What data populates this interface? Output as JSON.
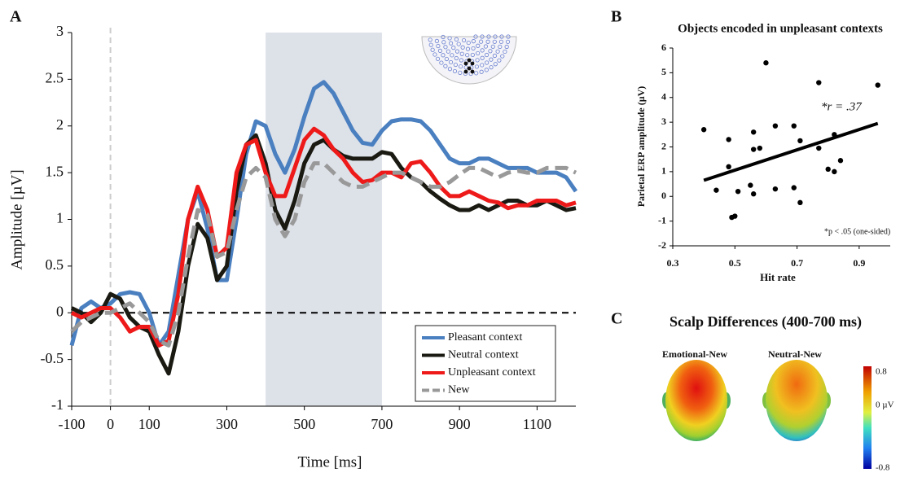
{
  "chart_data": [
    {
      "type": "line",
      "panel": "A",
      "xlabel": "Time [ms]",
      "ylabel": "Amplitude [µV]",
      "xlim": [
        -100,
        1200
      ],
      "ylim": [
        -1,
        3
      ],
      "xticks": [
        -100,
        0,
        100,
        300,
        500,
        700,
        900,
        1100
      ],
      "yticks": [
        -1,
        -0.5,
        0,
        0.5,
        1,
        1.5,
        2,
        2.5,
        3
      ],
      "shaded_region": [
        400,
        700
      ],
      "vline": 0,
      "hline": 0,
      "legend": "lower right",
      "x": [
        -100,
        -75,
        -50,
        -25,
        0,
        25,
        50,
        75,
        100,
        125,
        150,
        175,
        200,
        225,
        250,
        275,
        300,
        325,
        350,
        375,
        400,
        425,
        450,
        475,
        500,
        525,
        550,
        575,
        600,
        625,
        650,
        675,
        700,
        725,
        750,
        775,
        800,
        825,
        850,
        875,
        900,
        925,
        950,
        975,
        1000,
        1025,
        1050,
        1075,
        1100,
        1125,
        1150,
        1175,
        1200
      ],
      "series": [
        {
          "name": "Pleasant context",
          "color": "#4a7fc0",
          "dash": false,
          "values": [
            -0.35,
            0.05,
            0.12,
            0.05,
            0.1,
            0.2,
            0.22,
            0.2,
            0.0,
            -0.35,
            -0.2,
            0.4,
            1.0,
            1.3,
            0.9,
            0.35,
            0.35,
            1.0,
            1.7,
            2.05,
            2.0,
            1.7,
            1.5,
            1.75,
            2.1,
            2.4,
            2.47,
            2.35,
            2.15,
            1.95,
            1.82,
            1.8,
            1.95,
            2.05,
            2.07,
            2.07,
            2.05,
            1.95,
            1.8,
            1.65,
            1.6,
            1.6,
            1.65,
            1.65,
            1.6,
            1.55,
            1.55,
            1.55,
            1.5,
            1.5,
            1.5,
            1.45,
            1.3
          ]
        },
        {
          "name": "Neutral context",
          "color": "#1a1a12",
          "dash": false,
          "values": [
            0.05,
            0.0,
            -0.1,
            0.0,
            0.2,
            0.15,
            -0.05,
            -0.15,
            -0.2,
            -0.45,
            -0.65,
            -0.2,
            0.5,
            0.95,
            0.8,
            0.35,
            0.5,
            1.3,
            1.8,
            1.9,
            1.6,
            1.1,
            0.9,
            1.2,
            1.6,
            1.8,
            1.85,
            1.75,
            1.68,
            1.65,
            1.65,
            1.65,
            1.72,
            1.7,
            1.55,
            1.45,
            1.4,
            1.3,
            1.22,
            1.15,
            1.1,
            1.1,
            1.15,
            1.1,
            1.15,
            1.2,
            1.2,
            1.15,
            1.15,
            1.2,
            1.15,
            1.1,
            1.12
          ]
        },
        {
          "name": "Unpleasant context",
          "color": "#ee1a1a",
          "dash": false,
          "values": [
            0.0,
            -0.05,
            0.0,
            0.05,
            0.05,
            -0.05,
            -0.2,
            -0.15,
            -0.15,
            -0.35,
            -0.3,
            0.2,
            1.0,
            1.35,
            1.1,
            0.6,
            0.7,
            1.5,
            1.8,
            1.85,
            1.5,
            1.25,
            1.25,
            1.55,
            1.85,
            1.97,
            1.9,
            1.75,
            1.65,
            1.5,
            1.4,
            1.42,
            1.5,
            1.5,
            1.45,
            1.6,
            1.62,
            1.5,
            1.35,
            1.25,
            1.25,
            1.3,
            1.25,
            1.2,
            1.18,
            1.12,
            1.15,
            1.15,
            1.2,
            1.2,
            1.2,
            1.15,
            1.18
          ]
        },
        {
          "name": "New",
          "color": "#999999",
          "dash": true,
          "values": [
            -0.2,
            -0.1,
            -0.05,
            0.0,
            0.0,
            0.05,
            0.1,
            0.0,
            -0.1,
            -0.3,
            -0.35,
            0.0,
            0.6,
            1.1,
            1.05,
            0.6,
            0.65,
            1.1,
            1.45,
            1.55,
            1.45,
            1.0,
            0.82,
            1.0,
            1.4,
            1.6,
            1.6,
            1.5,
            1.4,
            1.35,
            1.35,
            1.4,
            1.45,
            1.5,
            1.5,
            1.45,
            1.4,
            1.35,
            1.35,
            1.4,
            1.48,
            1.55,
            1.55,
            1.5,
            1.45,
            1.5,
            1.52,
            1.5,
            1.5,
            1.55,
            1.55,
            1.55,
            1.5
          ]
        }
      ]
    },
    {
      "type": "scatter",
      "panel": "B",
      "title": "Objects encoded in unpleasant contexts",
      "xlabel": "Hit rate",
      "ylabel": "Parietal ERP amplitude  (µV)",
      "xlim": [
        0.3,
        1.0
      ],
      "ylim": [
        -2,
        6
      ],
      "xticks": [
        0.3,
        0.5,
        0.7,
        0.9
      ],
      "yticks": [
        -2,
        -1,
        0,
        1,
        2,
        3,
        4,
        5,
        6
      ],
      "color": "#000000",
      "x": [
        0.4,
        0.6,
        0.77,
        0.96,
        0.48,
        0.56,
        0.63,
        0.69,
        0.56,
        0.58,
        0.71,
        0.82,
        0.77,
        0.48,
        0.44,
        0.51,
        0.55,
        0.56,
        0.63,
        0.69,
        0.71,
        0.8,
        0.82,
        0.84,
        0.49,
        0.5
      ],
      "values": [
        2.7,
        5.4,
        4.6,
        4.5,
        2.3,
        2.6,
        2.85,
        2.85,
        1.9,
        1.95,
        2.25,
        2.5,
        1.95,
        1.2,
        0.25,
        0.2,
        0.45,
        0.1,
        0.3,
        0.35,
        -0.25,
        1.1,
        1.0,
        1.45,
        -0.85,
        -0.8
      ],
      "fit": {
        "x": [
          0.4,
          0.96
        ],
        "values": [
          0.65,
          2.95
        ]
      },
      "annotations": [
        "*r = .37",
        "*p < .05 (one-sided)"
      ]
    }
  ],
  "panel_c": {
    "label": "C",
    "title": "Scalp Differences (400-700 ms)",
    "maps": [
      "Emotional-New",
      "Neutral-New"
    ],
    "colorbar_labels": [
      "0.8",
      "0 µV",
      "-0.8"
    ]
  }
}
